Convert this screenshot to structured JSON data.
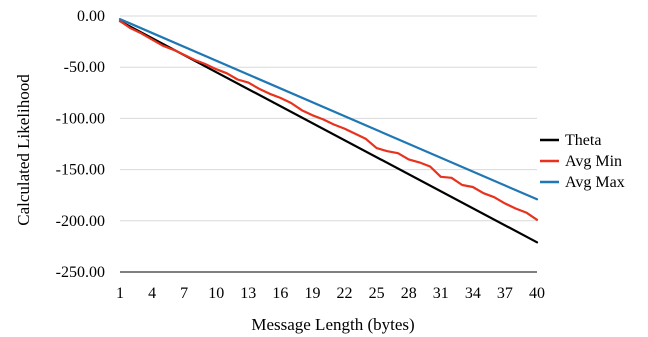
{
  "chart_data": {
    "type": "line",
    "title": "",
    "xlabel": "Message Length (bytes)",
    "ylabel": "Calculated Likelihood",
    "ylim": [
      -250,
      0
    ],
    "y_ticks": [
      "0.00",
      "-50.00",
      "-100.00",
      "-150.00",
      "-200.00",
      "-250.00"
    ],
    "x_range": [
      1,
      40
    ],
    "x_ticks": [
      "1",
      "4",
      "7",
      "10",
      "13",
      "16",
      "19",
      "22",
      "25",
      "28",
      "31",
      "34",
      "37",
      "40"
    ],
    "grid": "horizontal",
    "legend_position": "right",
    "series": [
      {
        "name": "Theta",
        "color": "#000000",
        "x": [
          1,
          40
        ],
        "values": [
          -5,
          -221
        ]
      },
      {
        "name": "Avg Min",
        "color": "#e8321e",
        "x": [
          1,
          2,
          3,
          4,
          5,
          6,
          7,
          8,
          9,
          10,
          11,
          12,
          13,
          14,
          15,
          16,
          17,
          18,
          19,
          20,
          21,
          22,
          23,
          24,
          25,
          26,
          27,
          28,
          29,
          30,
          31,
          32,
          33,
          34,
          35,
          36,
          37,
          38,
          39,
          40
        ],
        "values": [
          -5,
          -12,
          -17,
          -23,
          -29,
          -33,
          -38,
          -43,
          -47,
          -52,
          -56,
          -62,
          -65,
          -71,
          -76,
          -80,
          -85,
          -92,
          -97,
          -101,
          -106,
          -110,
          -115,
          -120,
          -129,
          -132,
          -134,
          -140,
          -143,
          -147,
          -157,
          -158,
          -165,
          -167,
          -173,
          -177,
          -183,
          -188,
          -192,
          -199
        ]
      },
      {
        "name": "Avg Max",
        "color": "#1f77b4",
        "x": [
          1,
          40
        ],
        "values": [
          -3,
          -179
        ]
      }
    ]
  }
}
